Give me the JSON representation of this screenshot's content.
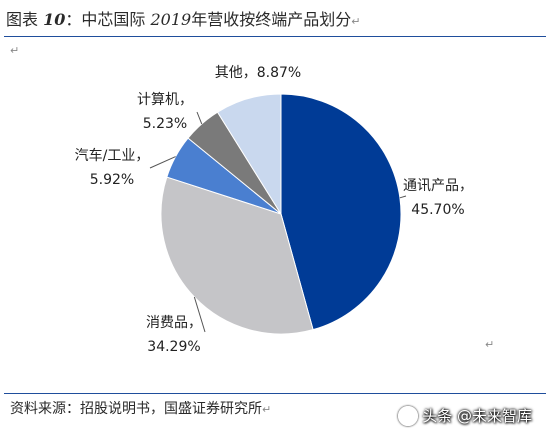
{
  "header": {
    "title_prefix": "图表",
    "title_num": "10",
    "title_sep": "：中芯国际",
    "title_year": "2019",
    "title_rest": "年营收按终端产品划分",
    "para_mark": "↵"
  },
  "chart_data": {
    "type": "pie",
    "start_angle_deg": 0,
    "direction": "clockwise",
    "slices": [
      {
        "label": "通讯产品",
        "value": 45.7,
        "value_text": "45.70%",
        "color": "#003b96"
      },
      {
        "label": "消费品",
        "value": 34.29,
        "value_text": "34.29%",
        "color": "#c5c5c8"
      },
      {
        "label": "汽车/工业",
        "value": 5.92,
        "value_text": "5.92%",
        "color": "#4a7fd0"
      },
      {
        "label": "计算机",
        "value": 5.23,
        "value_text": "5.23%",
        "color": "#7a7a7a"
      },
      {
        "label": "其他",
        "value": 8.87,
        "value_text": "8.87%",
        "color": "#c9d8ee"
      }
    ]
  },
  "footer": {
    "source": "资料来源：招股说明书，国盛证券研究所",
    "watermark": "头条 @未来智库"
  }
}
